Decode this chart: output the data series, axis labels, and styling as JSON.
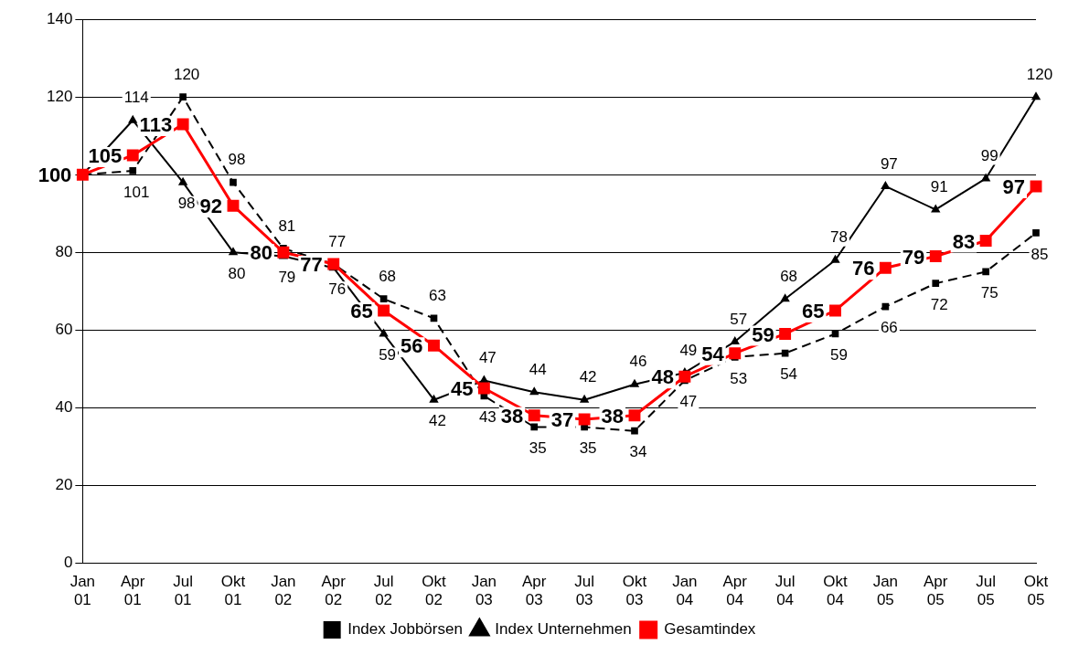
{
  "chart_data": {
    "type": "line",
    "categories": [
      "Jan 01",
      "Apr 01",
      "Jul 01",
      "Okt 01",
      "Jan 02",
      "Apr 02",
      "Jul 02",
      "Okt 02",
      "Jan 03",
      "Apr 03",
      "Jul 03",
      "Okt 03",
      "Jan 04",
      "Apr 04",
      "Jul 04",
      "Okt 04",
      "Jan 05",
      "Apr 05",
      "Jul 05",
      "Okt 05"
    ],
    "series": [
      {
        "name": "Index Jobbörsen",
        "color": "#000000",
        "marker": "square",
        "line_style": "dashed",
        "values": [
          100,
          101,
          120,
          98,
          81,
          77,
          68,
          63,
          43,
          35,
          35,
          34,
          47,
          53,
          54,
          59,
          66,
          72,
          75,
          85
        ],
        "value_labels": [
          null,
          "101",
          "120",
          "98",
          "81",
          "77",
          "68",
          "63",
          "43",
          "35",
          "35",
          "34",
          "47",
          "53",
          "54",
          "59",
          "66",
          "72",
          "75",
          "85"
        ]
      },
      {
        "name": "Index Unternehmen",
        "color": "#000000",
        "marker": "triangle",
        "line_style": "solid",
        "values": [
          100,
          114,
          98,
          80,
          79,
          76,
          59,
          42,
          47,
          44,
          42,
          46,
          49,
          57,
          68,
          78,
          97,
          91,
          99,
          120
        ],
        "value_labels": [
          null,
          "114",
          "98",
          "80",
          "79",
          "76",
          "59",
          "42",
          "47",
          "44",
          "42",
          "46",
          "49",
          "57",
          "68",
          "78",
          "97",
          "91",
          "99",
          "120"
        ]
      },
      {
        "name": "Gesamtindex",
        "color": "#ff0000",
        "marker": "square",
        "line_style": "solid",
        "values": [
          100,
          105,
          113,
          92,
          80,
          77,
          65,
          56,
          45,
          38,
          37,
          38,
          48,
          54,
          59,
          65,
          76,
          79,
          83,
          97
        ],
        "value_labels": [
          "100",
          "105",
          "113",
          "92",
          "80",
          "77",
          "65",
          "56",
          "45",
          "38",
          "37",
          "38",
          "48",
          "54",
          "59",
          "65",
          "76",
          "79",
          "83",
          "97"
        ]
      }
    ],
    "ylim": [
      0,
      140
    ],
    "yticks": [
      0,
      20,
      40,
      60,
      80,
      100,
      120,
      140
    ],
    "grid": "y",
    "legend": "bottom"
  }
}
